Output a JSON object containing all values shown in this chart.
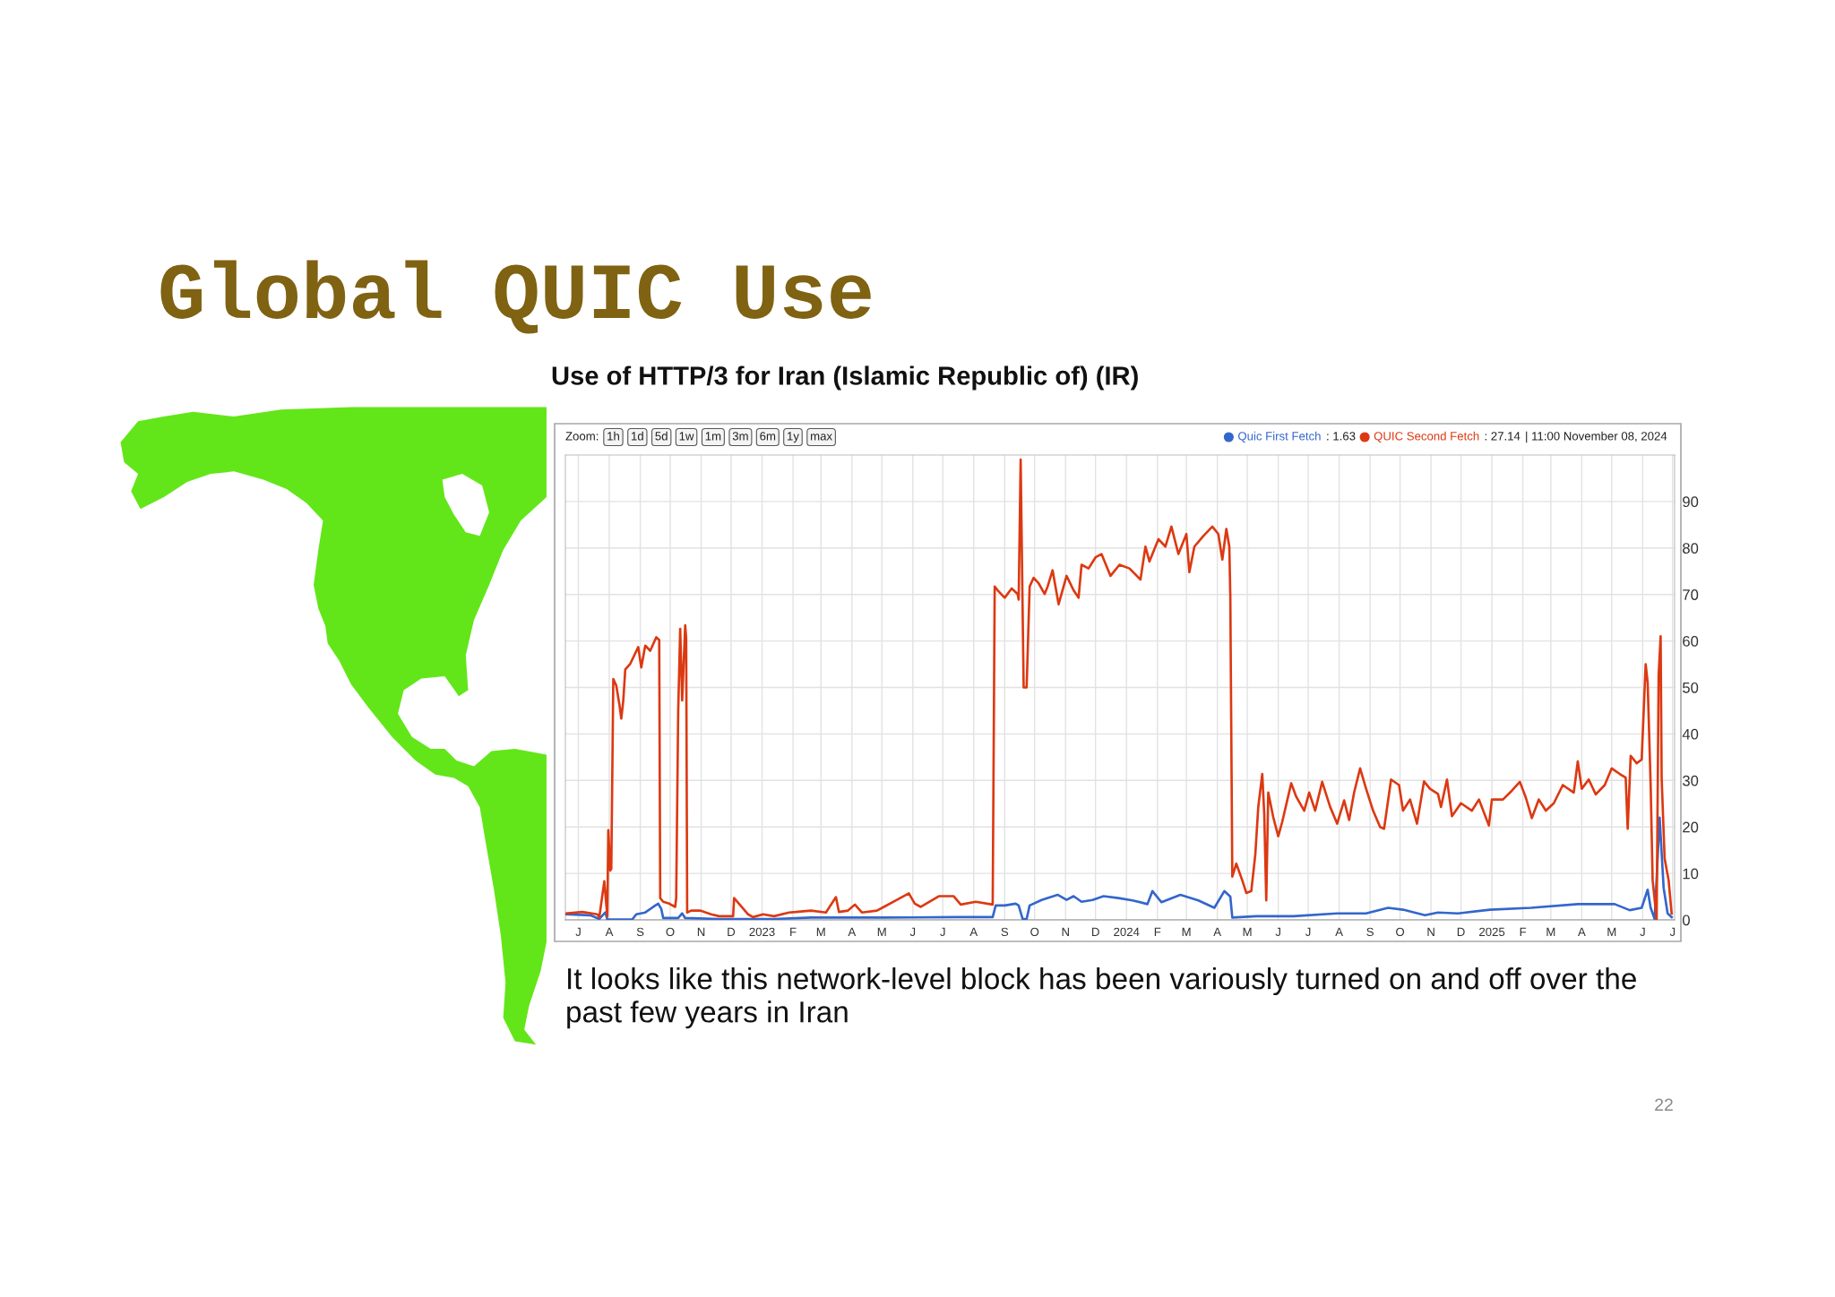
{
  "chart_data": {
    "type": "line",
    "title": "Global QUIC Use",
    "subtitle": "Use of HTTP/3 for Iran (Islamic Republic of) (IR)",
    "xlim": [
      "2022-06-18",
      "2025-07-03"
    ],
    "xticks": [
      {
        "value": "2022-07-01",
        "label": "J"
      },
      {
        "value": "2022-08-01",
        "label": "A"
      },
      {
        "value": "2022-09-01",
        "label": "S"
      },
      {
        "value": "2022-10-01",
        "label": "O"
      },
      {
        "value": "2022-11-01",
        "label": "N"
      },
      {
        "value": "2022-12-01",
        "label": "D"
      },
      {
        "value": "2023-01-01",
        "label": "2023"
      },
      {
        "value": "2023-02-01",
        "label": "F"
      },
      {
        "value": "2023-03-01",
        "label": "M"
      },
      {
        "value": "2023-04-01",
        "label": "A"
      },
      {
        "value": "2023-05-01",
        "label": "M"
      },
      {
        "value": "2023-06-01",
        "label": "J"
      },
      {
        "value": "2023-07-01",
        "label": "J"
      },
      {
        "value": "2023-08-01",
        "label": "A"
      },
      {
        "value": "2023-09-01",
        "label": "S"
      },
      {
        "value": "2023-10-01",
        "label": "O"
      },
      {
        "value": "2023-11-01",
        "label": "N"
      },
      {
        "value": "2023-12-01",
        "label": "D"
      },
      {
        "value": "2024-01-01",
        "label": "2024"
      },
      {
        "value": "2024-02-01",
        "label": "F"
      },
      {
        "value": "2024-03-01",
        "label": "M"
      },
      {
        "value": "2024-04-01",
        "label": "A"
      },
      {
        "value": "2024-05-01",
        "label": "M"
      },
      {
        "value": "2024-06-01",
        "label": "J"
      },
      {
        "value": "2024-07-01",
        "label": "J"
      },
      {
        "value": "2024-08-01",
        "label": "A"
      },
      {
        "value": "2024-09-01",
        "label": "S"
      },
      {
        "value": "2024-10-01",
        "label": "O"
      },
      {
        "value": "2024-11-01",
        "label": "N"
      },
      {
        "value": "2024-12-01",
        "label": "D"
      },
      {
        "value": "2025-01-01",
        "label": "2025"
      },
      {
        "value": "2025-02-01",
        "label": "F"
      },
      {
        "value": "2025-03-01",
        "label": "M"
      },
      {
        "value": "2025-04-01",
        "label": "A"
      },
      {
        "value": "2025-05-01",
        "label": "M"
      },
      {
        "value": "2025-06-01",
        "label": "J"
      },
      {
        "value": "2025-07-01",
        "label": "J"
      }
    ],
    "ylim": [
      0,
      100
    ],
    "yticks": [
      0,
      10,
      20,
      30,
      40,
      50,
      60,
      70,
      80,
      90
    ],
    "grid": true,
    "legend": "top right",
    "series": [
      {
        "name": "Quic First Fetch",
        "color": "#3366cc",
        "x": [
          "2022-06-18",
          "2022-07-13",
          "2022-07-22",
          "2022-07-28",
          "2022-07-30",
          "2022-08-24",
          "2022-08-28",
          "2022-09-06",
          "2022-09-14",
          "2022-09-19",
          "2022-09-22",
          "2022-09-24",
          "2022-10-09",
          "2022-10-13",
          "2022-10-16",
          "2022-11-19",
          "2023-01-13",
          "2023-02-19",
          "2023-05-03",
          "2023-07-15",
          "2023-08-20",
          "2023-08-23",
          "2023-09-01",
          "2023-09-12",
          "2023-09-15",
          "2023-09-19",
          "2023-09-23",
          "2023-09-26",
          "2023-10-08",
          "2023-10-24",
          "2023-11-02",
          "2023-11-09",
          "2023-11-17",
          "2023-11-28",
          "2023-12-09",
          "2023-12-24",
          "2024-01-07",
          "2024-01-22",
          "2024-01-27",
          "2024-02-05",
          "2024-02-24",
          "2024-03-13",
          "2024-03-29",
          "2024-04-08",
          "2024-04-14",
          "2024-04-16",
          "2024-05-10",
          "2024-06-16",
          "2024-07-30",
          "2024-08-28",
          "2024-09-19",
          "2024-10-04",
          "2024-10-26",
          "2024-11-08",
          "2024-11-28",
          "2024-12-30",
          "2025-02-09",
          "2025-03-28",
          "2025-05-04",
          "2025-05-19",
          "2025-05-31",
          "2025-06-06",
          "2025-06-09",
          "2025-06-13",
          "2025-06-18",
          "2025-06-22",
          "2025-06-26",
          "2025-06-30"
        ],
        "values": [
          1.2,
          1.0,
          0.2,
          1.6,
          0.1,
          0.1,
          1.2,
          1.6,
          2.8,
          3.5,
          2.4,
          0.4,
          0.4,
          1.4,
          0.4,
          0.2,
          0.2,
          0.5,
          0.5,
          0.6,
          0.6,
          3.1,
          3.1,
          3.5,
          3.1,
          0.2,
          0.2,
          3.1,
          4.3,
          5.4,
          4.3,
          5.1,
          3.9,
          4.3,
          5.1,
          4.7,
          4.2,
          3.4,
          6.2,
          3.8,
          5.4,
          4.2,
          2.6,
          6.2,
          5.0,
          0.5,
          0.8,
          0.8,
          1.4,
          1.4,
          2.6,
          2.2,
          1.0,
          1.6,
          1.4,
          2.2,
          2.6,
          3.4,
          3.4,
          2.1,
          2.6,
          6.5,
          2.6,
          0.2,
          22,
          6.9,
          1.4,
          0.6
        ]
      },
      {
        "name": "QUIC Second Fetch",
        "color": "#dc3912",
        "x": [
          "2022-06-18",
          "2022-07-05",
          "2022-07-20",
          "2022-07-22",
          "2022-07-27",
          "2022-07-30",
          "2022-07-31",
          "2022-08-02",
          "2022-08-03",
          "2022-08-05",
          "2022-08-08",
          "2022-08-11",
          "2022-08-13",
          "2022-08-15",
          "2022-08-17",
          "2022-08-22",
          "2022-08-30",
          "2022-09-02",
          "2022-09-06",
          "2022-09-11",
          "2022-09-17",
          "2022-09-20",
          "2022-09-21",
          "2022-09-24",
          "2022-09-30",
          "2022-10-06",
          "2022-10-07",
          "2022-10-09",
          "2022-10-11",
          "2022-10-13",
          "2022-10-16",
          "2022-10-17",
          "2022-10-18",
          "2022-10-22",
          "2022-10-31",
          "2022-11-11",
          "2022-11-19",
          "2022-12-03",
          "2022-12-04",
          "2022-12-18",
          "2022-12-23",
          "2023-01-02",
          "2023-01-13",
          "2023-01-28",
          "2023-02-04",
          "2023-02-19",
          "2023-03-06",
          "2023-03-16",
          "2023-03-19",
          "2023-03-28",
          "2023-04-04",
          "2023-04-11",
          "2023-04-26",
          "2023-05-03",
          "2023-05-16",
          "2023-05-28",
          "2023-06-03",
          "2023-06-09",
          "2023-06-27",
          "2023-07-12",
          "2023-07-19",
          "2023-08-03",
          "2023-08-20",
          "2023-08-22",
          "2023-08-25",
          "2023-09-01",
          "2023-09-08",
          "2023-09-14",
          "2023-09-15",
          "2023-09-17",
          "2023-09-20",
          "2023-09-23",
          "2023-09-26",
          "2023-09-30",
          "2023-10-05",
          "2023-10-11",
          "2023-10-14",
          "2023-10-19",
          "2023-10-25",
          "2023-11-02",
          "2023-11-09",
          "2023-11-14",
          "2023-11-17",
          "2023-11-24",
          "2023-12-01",
          "2023-12-07",
          "2023-12-16",
          "2023-12-25",
          "2024-01-04",
          "2024-01-15",
          "2024-01-20",
          "2024-01-24",
          "2024-02-02",
          "2024-02-09",
          "2024-02-15",
          "2024-02-22",
          "2024-03-01",
          "2024-03-04",
          "2024-03-09",
          "2024-03-18",
          "2024-03-27",
          "2024-04-02",
          "2024-04-06",
          "2024-04-10",
          "2024-04-13",
          "2024-04-14",
          "2024-04-16",
          "2024-04-20",
          "2024-04-26",
          "2024-04-30",
          "2024-05-05",
          "2024-05-09",
          "2024-05-12",
          "2024-05-16",
          "2024-05-18",
          "2024-05-20",
          "2024-05-22",
          "2024-05-27",
          "2024-06-01",
          "2024-06-05",
          "2024-06-14",
          "2024-06-19",
          "2024-06-27",
          "2024-07-02",
          "2024-07-08",
          "2024-07-15",
          "2024-07-23",
          "2024-07-30",
          "2024-08-06",
          "2024-08-11",
          "2024-08-16",
          "2024-08-22",
          "2024-08-28",
          "2024-09-04",
          "2024-09-11",
          "2024-09-15",
          "2024-09-22",
          "2024-09-30",
          "2024-10-04",
          "2024-10-11",
          "2024-10-18",
          "2024-10-25",
          "2024-10-31",
          "2024-11-08",
          "2024-11-11",
          "2024-11-17",
          "2024-11-22",
          "2024-12-01",
          "2024-12-12",
          "2024-12-19",
          "2024-12-29",
          "2025-01-01",
          "2025-01-12",
          "2025-01-21",
          "2025-01-29",
          "2025-02-04",
          "2025-02-10",
          "2025-02-17",
          "2025-02-24",
          "2025-03-04",
          "2025-03-13",
          "2025-03-24",
          "2025-03-28",
          "2025-04-01",
          "2025-04-08",
          "2025-04-15",
          "2025-04-24",
          "2025-05-01",
          "2025-05-09",
          "2025-05-15",
          "2025-05-17",
          "2025-05-20",
          "2025-05-26",
          "2025-05-31",
          "2025-06-04",
          "2025-06-06",
          "2025-06-09",
          "2025-06-11",
          "2025-06-15",
          "2025-06-17",
          "2025-06-19",
          "2025-06-20",
          "2025-06-23",
          "2025-06-27",
          "2025-06-30"
        ],
        "values": [
          1.4,
          1.7,
          1.2,
          0.6,
          8.3,
          0.8,
          19.3,
          10.6,
          11.0,
          51.8,
          50.4,
          46.5,
          43.3,
          47.2,
          53.9,
          55.1,
          58.7,
          54.3,
          59.0,
          57.9,
          60.8,
          60.2,
          4.7,
          3.9,
          3.5,
          2.8,
          4.7,
          44.9,
          62.6,
          47.2,
          63.4,
          60.6,
          1.6,
          2.0,
          2.0,
          1.2,
          0.8,
          0.8,
          4.7,
          1.2,
          0.6,
          1.2,
          0.8,
          1.6,
          1.7,
          2.0,
          1.6,
          4.9,
          1.7,
          2.0,
          3.3,
          1.6,
          2.0,
          2.8,
          4.3,
          5.7,
          3.5,
          2.8,
          5.1,
          5.1,
          3.3,
          3.9,
          3.3,
          71.7,
          70.9,
          69.3,
          71.3,
          70.1,
          68.9,
          99,
          50.0,
          50.0,
          71.7,
          73.6,
          72.4,
          70.1,
          71.7,
          75.2,
          67.9,
          74.0,
          70.9,
          69.3,
          76.4,
          75.6,
          78.0,
          78.7,
          74.0,
          76.4,
          75.6,
          73.2,
          80.3,
          77.1,
          81.9,
          80.3,
          84.6,
          78.7,
          83.0,
          74.8,
          80.3,
          82.6,
          84.6,
          83.0,
          77.5,
          84.1,
          80.3,
          69.6,
          9.3,
          12.1,
          8.5,
          5.8,
          6.2,
          14.0,
          24.3,
          31.4,
          22.7,
          4.2,
          27.4,
          22.1,
          18.0,
          21.1,
          29.4,
          26.5,
          23.5,
          27.4,
          23.5,
          29.7,
          24.3,
          20.7,
          25.7,
          21.5,
          27.4,
          32.6,
          28.2,
          23.5,
          20.0,
          19.6,
          30.2,
          29.0,
          23.5,
          25.9,
          20.7,
          29.8,
          28.2,
          27.1,
          24.3,
          30.2,
          22.3,
          25.1,
          23.5,
          25.9,
          20.3,
          25.9,
          25.9,
          27.8,
          29.7,
          26.3,
          21.9,
          25.9,
          23.5,
          25.1,
          29.0,
          27.4,
          34.1,
          28.2,
          30.2,
          27.0,
          29.0,
          32.6,
          31.4,
          30.6,
          19.6,
          35.3,
          33.7,
          34.5,
          55.0,
          51.1,
          29.0,
          8.5,
          0.2,
          52.7,
          61.0,
          30.6,
          13.2,
          8.5,
          1.4
        ]
      }
    ],
    "annotations": [
      "Zoom:",
      "1h",
      "1d",
      "5d",
      "1w",
      "1m",
      "3m",
      "6m",
      "1y",
      "max",
      ": 1.63",
      ": 27.14",
      "| 11:00 November 08, 2024",
      "It looks like this network-level block has been variously turned on and off over the past few years in Iran",
      "22"
    ]
  }
}
